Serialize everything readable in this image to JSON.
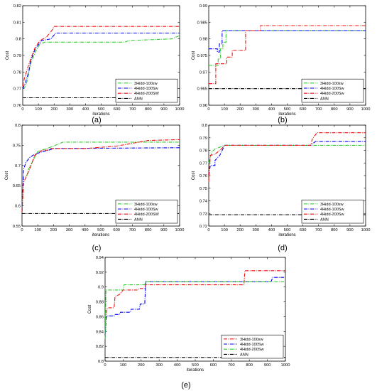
{
  "colors": {
    "green": "#33cc33",
    "blue": "#0000ee",
    "red": "#ee1111",
    "black": "#000000"
  },
  "chart_data": [
    {
      "type": "line",
      "caption": "(a)",
      "xlabel": "iterations",
      "ylabel": "Cost",
      "xlim": [
        0,
        1000
      ],
      "ylim": [
        0.76,
        0.82
      ],
      "xticks": [
        0,
        100,
        200,
        300,
        400,
        500,
        600,
        700,
        800,
        900,
        1000
      ],
      "yticks": [
        0.76,
        0.77,
        0.78,
        0.79,
        0.8,
        0.81,
        0.82
      ],
      "ytick_labels": [
        "0.76",
        "0.77",
        "0.78",
        "0.79",
        "0.8",
        "0.81",
        "0.82"
      ],
      "legend_position": "bottom-right",
      "series": [
        {
          "name": "3Hidd-100sw",
          "color": "#33cc33",
          "style": "dashdot",
          "points": [
            [
              0,
              0.77
            ],
            [
              15,
              0.771
            ],
            [
              30,
              0.775
            ],
            [
              50,
              0.785
            ],
            [
              80,
              0.792
            ],
            [
              110,
              0.797
            ],
            [
              140,
              0.798
            ],
            [
              650,
              0.798
            ],
            [
              680,
              0.799
            ],
            [
              950,
              0.8
            ],
            [
              1000,
              0.802
            ]
          ]
        },
        {
          "name": "4Hidd-100Sw",
          "color": "#0000ee",
          "style": "dashdot",
          "points": [
            [
              0,
              0.77
            ],
            [
              15,
              0.773
            ],
            [
              35,
              0.779
            ],
            [
              55,
              0.788
            ],
            [
              80,
              0.794
            ],
            [
              120,
              0.799
            ],
            [
              180,
              0.8
            ],
            [
              210,
              0.8035
            ],
            [
              1000,
              0.8035
            ]
          ]
        },
        {
          "name": "4Hidd-200SW",
          "color": "#ee1111",
          "style": "dashdot",
          "points": [
            [
              0,
              0.771
            ],
            [
              10,
              0.776
            ],
            [
              30,
              0.782
            ],
            [
              55,
              0.789
            ],
            [
              80,
              0.795
            ],
            [
              110,
              0.799
            ],
            [
              150,
              0.801
            ],
            [
              185,
              0.805
            ],
            [
              200,
              0.8075
            ],
            [
              1000,
              0.8075
            ]
          ]
        },
        {
          "name": "ANN",
          "color": "#000000",
          "style": "dashdot",
          "points": [
            [
              0,
              0.7645
            ],
            [
              1000,
              0.7645
            ]
          ]
        }
      ]
    },
    {
      "type": "line",
      "caption": "(b)",
      "xlabel": "iterations",
      "ylabel": "Cost",
      "xlim": [
        0,
        1000
      ],
      "ylim": [
        0.96,
        0.99
      ],
      "xticks": [
        0,
        100,
        200,
        300,
        400,
        500,
        600,
        700,
        800,
        900,
        1000
      ],
      "yticks": [
        0.96,
        0.965,
        0.97,
        0.975,
        0.98,
        0.985,
        0.99
      ],
      "ytick_labels": [
        "0.96",
        "0.965",
        "0.97",
        "0.975",
        "0.98",
        "0.985",
        "0.99"
      ],
      "legend_position": "bottom-right",
      "series": [
        {
          "name": "3Hidd-100sw",
          "color": "#33cc33",
          "style": "dashdot",
          "points": [
            [
              0,
              0.972
            ],
            [
              60,
              0.972
            ],
            [
              60,
              0.974
            ],
            [
              75,
              0.974
            ],
            [
              75,
              0.977
            ],
            [
              90,
              0.977
            ],
            [
              90,
              0.979
            ],
            [
              110,
              0.979
            ],
            [
              110,
              0.9825
            ],
            [
              1000,
              0.9825
            ]
          ]
        },
        {
          "name": "4Hidd-100Sw",
          "color": "#0000ee",
          "style": "dashdot",
          "points": [
            [
              0,
              0.977
            ],
            [
              55,
              0.977
            ],
            [
              55,
              0.976
            ],
            [
              68,
              0.976
            ],
            [
              68,
              0.9785
            ],
            [
              85,
              0.9785
            ],
            [
              85,
              0.9825
            ],
            [
              1000,
              0.9825
            ]
          ]
        },
        {
          "name": "4Hidd-200Sw",
          "color": "#ee1111",
          "style": "dashdot",
          "points": [
            [
              0,
              0.9665
            ],
            [
              45,
              0.9665
            ],
            [
              45,
              0.9725
            ],
            [
              115,
              0.9725
            ],
            [
              115,
              0.9745
            ],
            [
              150,
              0.9745
            ],
            [
              150,
              0.9765
            ],
            [
              235,
              0.9765
            ],
            [
              235,
              0.9825
            ],
            [
              330,
              0.9825
            ],
            [
              330,
              0.984
            ],
            [
              1000,
              0.984
            ]
          ]
        },
        {
          "name": "ANN",
          "color": "#000000",
          "style": "dashdot",
          "points": [
            [
              0,
              0.965
            ],
            [
              1000,
              0.965
            ]
          ]
        }
      ]
    },
    {
      "type": "line",
      "caption": "(c)",
      "xlabel": "iterations",
      "ylabel": "Cost",
      "xlim": [
        0,
        1000
      ],
      "ylim": [
        0.55,
        0.8
      ],
      "xticks": [
        0,
        100,
        200,
        300,
        400,
        500,
        600,
        700,
        800,
        900,
        1000
      ],
      "yticks": [
        0.55,
        0.6,
        0.65,
        0.7,
        0.75,
        0.8
      ],
      "ytick_labels": [
        "0.55",
        "0.6",
        "0.65",
        "0.7",
        "0.75",
        "0.8"
      ],
      "legend_position": "bottom-right",
      "series": [
        {
          "name": "3Hidd-100sw",
          "color": "#33cc33",
          "style": "dashdot",
          "points": [
            [
              0,
              0.585
            ],
            [
              10,
              0.672
            ],
            [
              30,
              0.674
            ],
            [
              40,
              0.69
            ],
            [
              70,
              0.712
            ],
            [
              100,
              0.735
            ],
            [
              150,
              0.741
            ],
            [
              200,
              0.748
            ],
            [
              260,
              0.758
            ],
            [
              1000,
              0.758
            ]
          ]
        },
        {
          "name": "4Hidd-100Sw",
          "color": "#0000ee",
          "style": "dashdot",
          "points": [
            [
              0,
              0.585
            ],
            [
              10,
              0.69
            ],
            [
              25,
              0.708
            ],
            [
              50,
              0.72
            ],
            [
              80,
              0.728
            ],
            [
              120,
              0.733
            ],
            [
              170,
              0.738
            ],
            [
              200,
              0.742
            ],
            [
              1000,
              0.744
            ]
          ]
        },
        {
          "name": "4Hidd-200SW",
          "color": "#ee1111",
          "style": "dashdot",
          "points": [
            [
              0,
              0.585
            ],
            [
              10,
              0.658
            ],
            [
              30,
              0.675
            ],
            [
              50,
              0.692
            ],
            [
              80,
              0.725
            ],
            [
              130,
              0.738
            ],
            [
              170,
              0.738
            ],
            [
              180,
              0.742
            ],
            [
              400,
              0.742
            ],
            [
              600,
              0.748
            ],
            [
              800,
              0.762
            ],
            [
              1000,
              0.764
            ]
          ]
        },
        {
          "name": "ANN",
          "color": "#000000",
          "style": "dashdot",
          "points": [
            [
              0,
              0.581
            ],
            [
              1000,
              0.581
            ]
          ]
        }
      ]
    },
    {
      "type": "line",
      "caption": "(d)",
      "xlabel": "iterations",
      "ylabel": "Cost",
      "xlim": [
        0,
        1000
      ],
      "ylim": [
        0.72,
        0.8
      ],
      "xticks": [
        0,
        100,
        200,
        300,
        400,
        500,
        600,
        700,
        800,
        900,
        1000
      ],
      "yticks": [
        0.72,
        0.73,
        0.74,
        0.75,
        0.76,
        0.77,
        0.78,
        0.79,
        0.8
      ],
      "ytick_labels": [
        "0.72",
        "0.73",
        "0.74",
        "0.75",
        "0.76",
        "0.77",
        "0.78",
        "0.79",
        "0.8"
      ],
      "legend_position": "bottom-right",
      "series": [
        {
          "name": "3Hidd-100sw",
          "color": "#33cc33",
          "style": "dashdot",
          "points": [
            [
              0,
              0.77
            ],
            [
              20,
              0.779
            ],
            [
              40,
              0.781
            ],
            [
              60,
              0.782
            ],
            [
              80,
              0.783
            ],
            [
              100,
              0.784
            ],
            [
              1000,
              0.784
            ]
          ]
        },
        {
          "name": "4Hidd-100Sw",
          "color": "#0000ee",
          "style": "dashdot",
          "points": [
            [
              0,
              0.76
            ],
            [
              10,
              0.768
            ],
            [
              40,
              0.768
            ],
            [
              40,
              0.772
            ],
            [
              70,
              0.776
            ],
            [
              90,
              0.781
            ],
            [
              100,
              0.784
            ],
            [
              650,
              0.784
            ],
            [
              680,
              0.787
            ],
            [
              1000,
              0.787
            ]
          ]
        },
        {
          "name": "4Hidd-200Sw",
          "color": "#ee1111",
          "style": "dashdot",
          "points": [
            [
              0,
              0.755
            ],
            [
              10,
              0.776
            ],
            [
              40,
              0.777
            ],
            [
              60,
              0.779
            ],
            [
              80,
              0.781
            ],
            [
              100,
              0.784
            ],
            [
              650,
              0.784
            ],
            [
              660,
              0.789
            ],
            [
              690,
              0.794
            ],
            [
              1000,
              0.794
            ]
          ]
        },
        {
          "name": "ANN",
          "color": "#000000",
          "style": "dashdot",
          "points": [
            [
              0,
              0.729
            ],
            [
              1000,
              0.729
            ]
          ]
        }
      ]
    },
    {
      "type": "line",
      "caption": "(e)",
      "xlabel": "iterations",
      "ylabel": "Cost",
      "xlim": [
        0,
        1000
      ],
      "ylim": [
        0.8,
        0.94
      ],
      "xticks": [
        0,
        100,
        200,
        300,
        400,
        500,
        600,
        700,
        800,
        900,
        1000
      ],
      "yticks": [
        0.8,
        0.82,
        0.84,
        0.86,
        0.88,
        0.9,
        0.92,
        0.94
      ],
      "ytick_labels": [
        "0.8",
        "0.82",
        "0.84",
        "0.86",
        "0.88",
        "0.9",
        "0.92",
        "0.94"
      ],
      "legend_position": "bottom-right",
      "series": [
        {
          "name": "3Hidd-100sw",
          "color": "#ee1111",
          "style": "dashdot",
          "points": [
            [
              0,
              0.83
            ],
            [
              8,
              0.87
            ],
            [
              20,
              0.872
            ],
            [
              50,
              0.872
            ],
            [
              55,
              0.887
            ],
            [
              80,
              0.89
            ],
            [
              90,
              0.893
            ],
            [
              100,
              0.896
            ],
            [
              180,
              0.896
            ],
            [
              190,
              0.898
            ],
            [
              220,
              0.898
            ],
            [
              225,
              0.903
            ],
            [
              770,
              0.903
            ],
            [
              775,
              0.922
            ],
            [
              1000,
              0.922
            ]
          ]
        },
        {
          "name": "4Hidd-100Sw",
          "color": "#0000ee",
          "style": "dashdot",
          "points": [
            [
              0,
              0.83
            ],
            [
              5,
              0.857
            ],
            [
              10,
              0.861
            ],
            [
              50,
              0.861
            ],
            [
              55,
              0.863
            ],
            [
              80,
              0.863
            ],
            [
              85,
              0.866
            ],
            [
              140,
              0.866
            ],
            [
              145,
              0.87
            ],
            [
              190,
              0.87
            ],
            [
              195,
              0.877
            ],
            [
              220,
              0.877
            ],
            [
              225,
              0.907
            ],
            [
              920,
              0.907
            ],
            [
              930,
              0.913
            ],
            [
              1000,
              0.913
            ]
          ]
        },
        {
          "name": "4Hidd-200Sw",
          "color": "#33cc33",
          "style": "dashdot",
          "points": [
            [
              0,
              0.83
            ],
            [
              5,
              0.896
            ],
            [
              100,
              0.896
            ],
            [
              105,
              0.903
            ],
            [
              220,
              0.903
            ],
            [
              225,
              0.907
            ],
            [
              1000,
              0.907
            ]
          ]
        },
        {
          "name": "ANN",
          "color": "#000000",
          "style": "dashdot",
          "points": [
            [
              0,
              0.805
            ],
            [
              1000,
              0.805
            ]
          ]
        }
      ]
    }
  ]
}
